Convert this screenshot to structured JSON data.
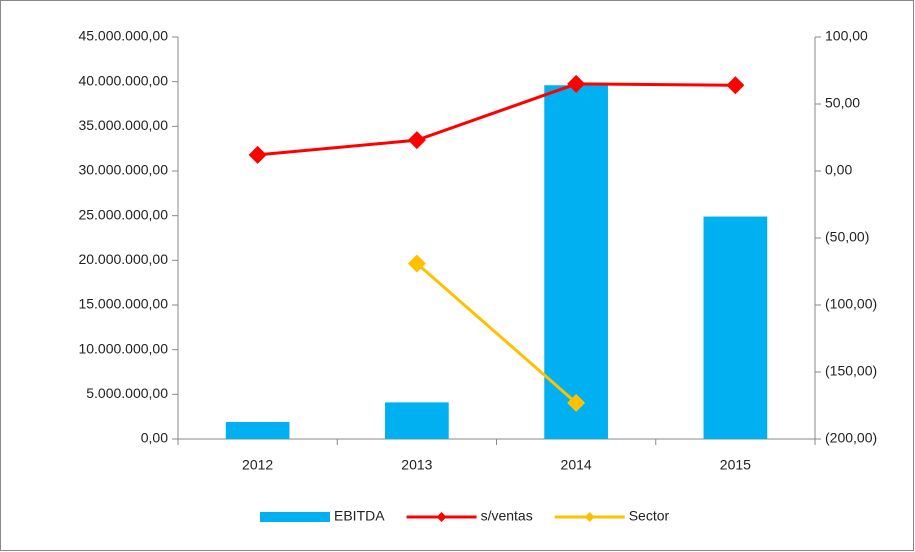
{
  "chart_data": {
    "type": "bar",
    "categories": [
      "2012",
      "2013",
      "2014",
      "2015"
    ],
    "series": [
      {
        "name": "EBITDA",
        "type": "bar",
        "color": "#00b0f0",
        "values": [
          1900000,
          4100000,
          39600000,
          24900000
        ]
      },
      {
        "name": "s/ventas",
        "type": "line",
        "axis": "y2",
        "color": "#ff0000",
        "values": [
          12,
          23,
          65,
          64
        ]
      },
      {
        "name": "Sector",
        "type": "line",
        "axis": "y2",
        "color": "#ffc000",
        "values": [
          null,
          -69,
          -173,
          null
        ]
      }
    ],
    "ylim": [
      0,
      45000000
    ],
    "yticks": [
      {
        "value": 0,
        "label": "0,00"
      },
      {
        "value": 5000000,
        "label": "5.000.000,00"
      },
      {
        "value": 10000000,
        "label": "10.000.000,00"
      },
      {
        "value": 15000000,
        "label": "15.000.000,00"
      },
      {
        "value": 20000000,
        "label": "20.000.000,00"
      },
      {
        "value": 25000000,
        "label": "25.000.000,00"
      },
      {
        "value": 30000000,
        "label": "30.000.000,00"
      },
      {
        "value": 35000000,
        "label": "35.000.000,00"
      },
      {
        "value": 40000000,
        "label": "40.000.000,00"
      },
      {
        "value": 45000000,
        "label": "45.000.000,00"
      }
    ],
    "y2lim": [
      -200,
      100
    ],
    "y2ticks": [
      {
        "value": -200,
        "label": "(200,00)"
      },
      {
        "value": -150,
        "label": "(150,00)"
      },
      {
        "value": -100,
        "label": "(100,00)"
      },
      {
        "value": -50,
        "label": "(50,00)"
      },
      {
        "value": 0,
        "label": "0,00"
      },
      {
        "value": 50,
        "label": "50,00"
      },
      {
        "value": 100,
        "label": "100,00"
      }
    ],
    "legend": "bottom"
  }
}
